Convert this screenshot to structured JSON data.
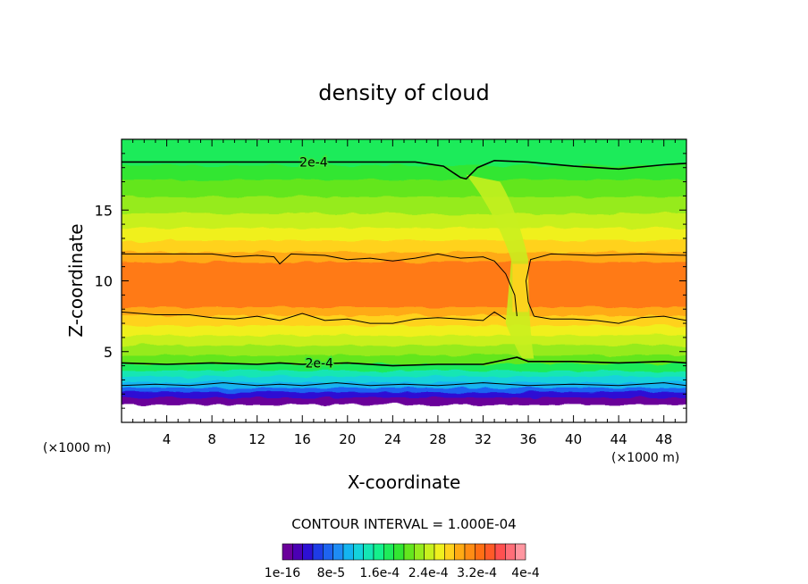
{
  "chart_data": {
    "type": "heatmap",
    "title": "density of cloud",
    "xlabel": "X-coordinate",
    "ylabel": "Z-coordinate",
    "x_unit": "(×1000 m)",
    "xlim": [
      0,
      50
    ],
    "ylim": [
      0,
      20
    ],
    "xticks": [
      4,
      8,
      12,
      16,
      20,
      24,
      28,
      32,
      36,
      40,
      44,
      48
    ],
    "yticks": [
      5,
      10,
      15
    ],
    "contour_interval_text": "CONTOUR INTERVAL = 1.000E-04",
    "contour_labels": [
      {
        "text": "2e-4",
        "x": 17,
        "z": 18.4
      },
      {
        "text": "2e-4",
        "x": 17.5,
        "z": 4.2
      }
    ],
    "colorbar": {
      "colors": [
        "#6a009a",
        "#4b00b4",
        "#2d10d4",
        "#1e3ce6",
        "#1e64f0",
        "#1e8cf5",
        "#14b4f0",
        "#14d2dc",
        "#14e6b4",
        "#14f08c",
        "#1eeb5a",
        "#32e632",
        "#64e61e",
        "#96eb1e",
        "#c8f01e",
        "#f0f01e",
        "#ffd21e",
        "#ffaa14",
        "#ff8c14",
        "#ff6e14",
        "#ff5a28",
        "#ff5050",
        "#ff6e78",
        "#ff96a0"
      ],
      "tick_labels": [
        "1e-16",
        "8e-5",
        "1.6e-4",
        "2.4e-4",
        "3.2e-4",
        "4e-4"
      ]
    },
    "bands": [
      {
        "z0": 0.0,
        "z1": 1.3,
        "color": "#ffffff"
      },
      {
        "z0": 1.3,
        "z1": 1.8,
        "color": "#6a009a"
      },
      {
        "z0": 1.8,
        "z1": 2.2,
        "color": "#2d10d4"
      },
      {
        "z0": 2.2,
        "z1": 2.5,
        "color": "#1e64f0"
      },
      {
        "z0": 2.5,
        "z1": 2.9,
        "color": "#14b4f0"
      },
      {
        "z0": 2.9,
        "z1": 3.3,
        "color": "#14d2dc"
      },
      {
        "z0": 3.3,
        "z1": 3.7,
        "color": "#14e6b4"
      },
      {
        "z0": 3.7,
        "z1": 4.2,
        "color": "#1eeb5a"
      },
      {
        "z0": 4.2,
        "z1": 4.8,
        "color": "#64e61e"
      },
      {
        "z0": 4.8,
        "z1": 5.5,
        "color": "#96eb1e"
      },
      {
        "z0": 5.5,
        "z1": 6.2,
        "color": "#c8f01e"
      },
      {
        "z0": 6.2,
        "z1": 6.9,
        "color": "#f0f01e"
      },
      {
        "z0": 6.9,
        "z1": 7.6,
        "color": "#ffd21e"
      },
      {
        "z0": 7.6,
        "z1": 8.2,
        "color": "#ffaa14"
      },
      {
        "z0": 8.2,
        "z1": 11.4,
        "color": "#ff7a14"
      },
      {
        "z0": 11.4,
        "z1": 12.1,
        "color": "#ffaa14"
      },
      {
        "z0": 12.1,
        "z1": 12.9,
        "color": "#ffd21e"
      },
      {
        "z0": 12.9,
        "z1": 13.8,
        "color": "#f0f01e"
      },
      {
        "z0": 13.8,
        "z1": 14.8,
        "color": "#c8f01e"
      },
      {
        "z0": 14.8,
        "z1": 16.0,
        "color": "#96eb1e"
      },
      {
        "z0": 16.0,
        "z1": 17.2,
        "color": "#64e61e"
      },
      {
        "z0": 17.2,
        "z1": 18.2,
        "color": "#32e632"
      },
      {
        "z0": 18.2,
        "z1": 20.0,
        "color": "#1eeb5a"
      }
    ],
    "contour_top": [
      [
        0,
        18.4
      ],
      [
        10,
        18.4
      ],
      [
        20,
        18.4
      ],
      [
        26,
        18.4
      ],
      [
        28.5,
        18.1
      ],
      [
        30,
        17.3
      ],
      [
        30.5,
        17.2
      ],
      [
        31.5,
        18.0
      ],
      [
        33,
        18.5
      ],
      [
        36,
        18.4
      ],
      [
        40,
        18.1
      ],
      [
        44,
        17.9
      ],
      [
        48,
        18.2
      ],
      [
        50,
        18.3
      ]
    ],
    "contour_upper": [
      [
        0,
        11.9
      ],
      [
        4,
        11.9
      ],
      [
        8,
        11.9
      ],
      [
        10,
        11.7
      ],
      [
        12,
        11.8
      ],
      [
        13.5,
        11.7
      ],
      [
        14,
        11.2
      ],
      [
        15,
        11.9
      ],
      [
        18,
        11.8
      ],
      [
        20,
        11.5
      ],
      [
        22,
        11.6
      ],
      [
        24,
        11.4
      ],
      [
        26,
        11.6
      ],
      [
        28,
        11.9
      ],
      [
        30,
        11.6
      ],
      [
        32,
        11.7
      ],
      [
        33,
        11.4
      ],
      [
        34,
        10.5
      ],
      [
        34.8,
        9.0
      ],
      [
        35,
        7.5
      ]
    ],
    "contour_upper_right": [
      [
        36.5,
        7.5
      ],
      [
        36,
        8.5
      ],
      [
        35.8,
        10.0
      ],
      [
        36.2,
        11.5
      ],
      [
        38,
        11.9
      ],
      [
        42,
        11.8
      ],
      [
        46,
        11.9
      ],
      [
        50,
        11.8
      ]
    ],
    "contour_lower": [
      [
        0,
        7.8
      ],
      [
        3,
        7.6
      ],
      [
        6,
        7.6
      ],
      [
        8,
        7.4
      ],
      [
        10,
        7.3
      ],
      [
        12,
        7.5
      ],
      [
        14,
        7.2
      ],
      [
        16,
        7.7
      ],
      [
        18,
        7.2
      ],
      [
        20,
        7.3
      ],
      [
        22,
        7.0
      ],
      [
        24,
        7.0
      ],
      [
        26,
        7.3
      ],
      [
        28,
        7.4
      ],
      [
        30,
        7.3
      ],
      [
        32,
        7.2
      ],
      [
        33,
        7.8
      ],
      [
        34,
        7.3
      ]
    ],
    "contour_lower_right": [
      [
        36.5,
        7.5
      ],
      [
        38,
        7.3
      ],
      [
        40,
        7.3
      ],
      [
        42,
        7.2
      ],
      [
        44,
        7.0
      ],
      [
        46,
        7.4
      ],
      [
        48,
        7.5
      ],
      [
        50,
        7.2
      ]
    ],
    "contour_mid": [
      [
        0,
        4.2
      ],
      [
        4,
        4.1
      ],
      [
        8,
        4.2
      ],
      [
        12,
        4.1
      ],
      [
        14,
        4.2
      ],
      [
        16,
        4.1
      ],
      [
        20,
        4.2
      ],
      [
        24,
        4.0
      ],
      [
        28,
        4.1
      ],
      [
        32,
        4.1
      ],
      [
        35,
        4.6
      ],
      [
        36,
        4.3
      ],
      [
        40,
        4.3
      ],
      [
        44,
        4.2
      ],
      [
        48,
        4.3
      ],
      [
        50,
        4.2
      ]
    ],
    "contour_base": [
      [
        0,
        2.6
      ],
      [
        3,
        2.7
      ],
      [
        6,
        2.6
      ],
      [
        9,
        2.8
      ],
      [
        12,
        2.6
      ],
      [
        14,
        2.7
      ],
      [
        16,
        2.6
      ],
      [
        19,
        2.8
      ],
      [
        22,
        2.6
      ],
      [
        25,
        2.7
      ],
      [
        28,
        2.6
      ],
      [
        32,
        2.8
      ],
      [
        36,
        2.6
      ],
      [
        40,
        2.7
      ],
      [
        44,
        2.6
      ],
      [
        48,
        2.8
      ],
      [
        50,
        2.6
      ]
    ]
  }
}
